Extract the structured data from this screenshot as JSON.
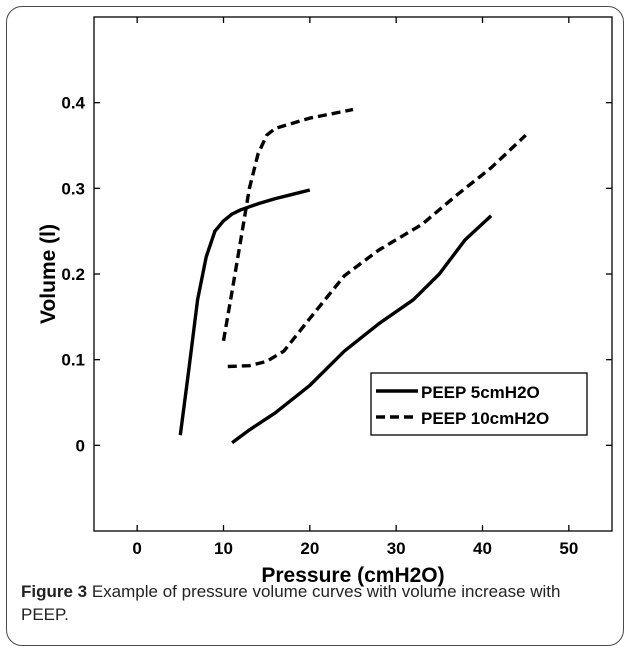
{
  "figure": {
    "caption_label": "Figure 3",
    "caption_text": " Example of pressure volume curves with volume increase with PEEP."
  },
  "chart_data": {
    "type": "line",
    "xlabel": "Pressure (cmH2O)",
    "ylabel": "Volume (l)",
    "xlim": [
      -5,
      55
    ],
    "ylim": [
      -0.1,
      0.5
    ],
    "xticks": [
      0,
      10,
      20,
      30,
      40,
      50
    ],
    "yticks": [
      0,
      0.1,
      0.2,
      0.3,
      0.4
    ],
    "xtick_labels": [
      "0",
      "10",
      "20",
      "30",
      "40",
      "50"
    ],
    "ytick_labels": [
      "0",
      "0.1",
      "0.2",
      "0.3",
      "0.4"
    ],
    "legend_position": "center-right",
    "series": [
      {
        "name": "PEEP 5cmH2O",
        "style": "solid",
        "color": "#000000",
        "segments": [
          {
            "x": [
              5,
              6,
              7,
              8,
              9,
              10,
              11,
              12,
              14,
              16,
              18,
              20
            ],
            "y": [
              0.012,
              0.09,
              0.17,
              0.22,
              0.25,
              0.262,
              0.27,
              0.275,
              0.282,
              0.288,
              0.293,
              0.298
            ]
          },
          {
            "x": [
              11,
              13,
              16,
              20,
              24,
              28,
              32,
              35,
              38,
              41
            ],
            "y": [
              0.003,
              0.018,
              0.038,
              0.07,
              0.11,
              0.142,
              0.17,
              0.2,
              0.24,
              0.268
            ]
          }
        ]
      },
      {
        "name": "PEEP 10cmH2O",
        "style": "dashed",
        "color": "#000000",
        "segments": [
          {
            "x": [
              10,
              11,
              12,
              13,
              14,
              15,
              16,
              18,
              20,
              22,
              25
            ],
            "y": [
              0.122,
              0.18,
              0.24,
              0.3,
              0.34,
              0.362,
              0.37,
              0.376,
              0.382,
              0.386,
              0.392
            ]
          },
          {
            "x": [
              10.5,
              13,
              15,
              17,
              20,
              24,
              28,
              33,
              37,
              41,
              45
            ],
            "y": [
              0.092,
              0.093,
              0.098,
              0.11,
              0.148,
              0.198,
              0.228,
              0.258,
              0.292,
              0.324,
              0.362
            ]
          }
        ]
      }
    ]
  }
}
